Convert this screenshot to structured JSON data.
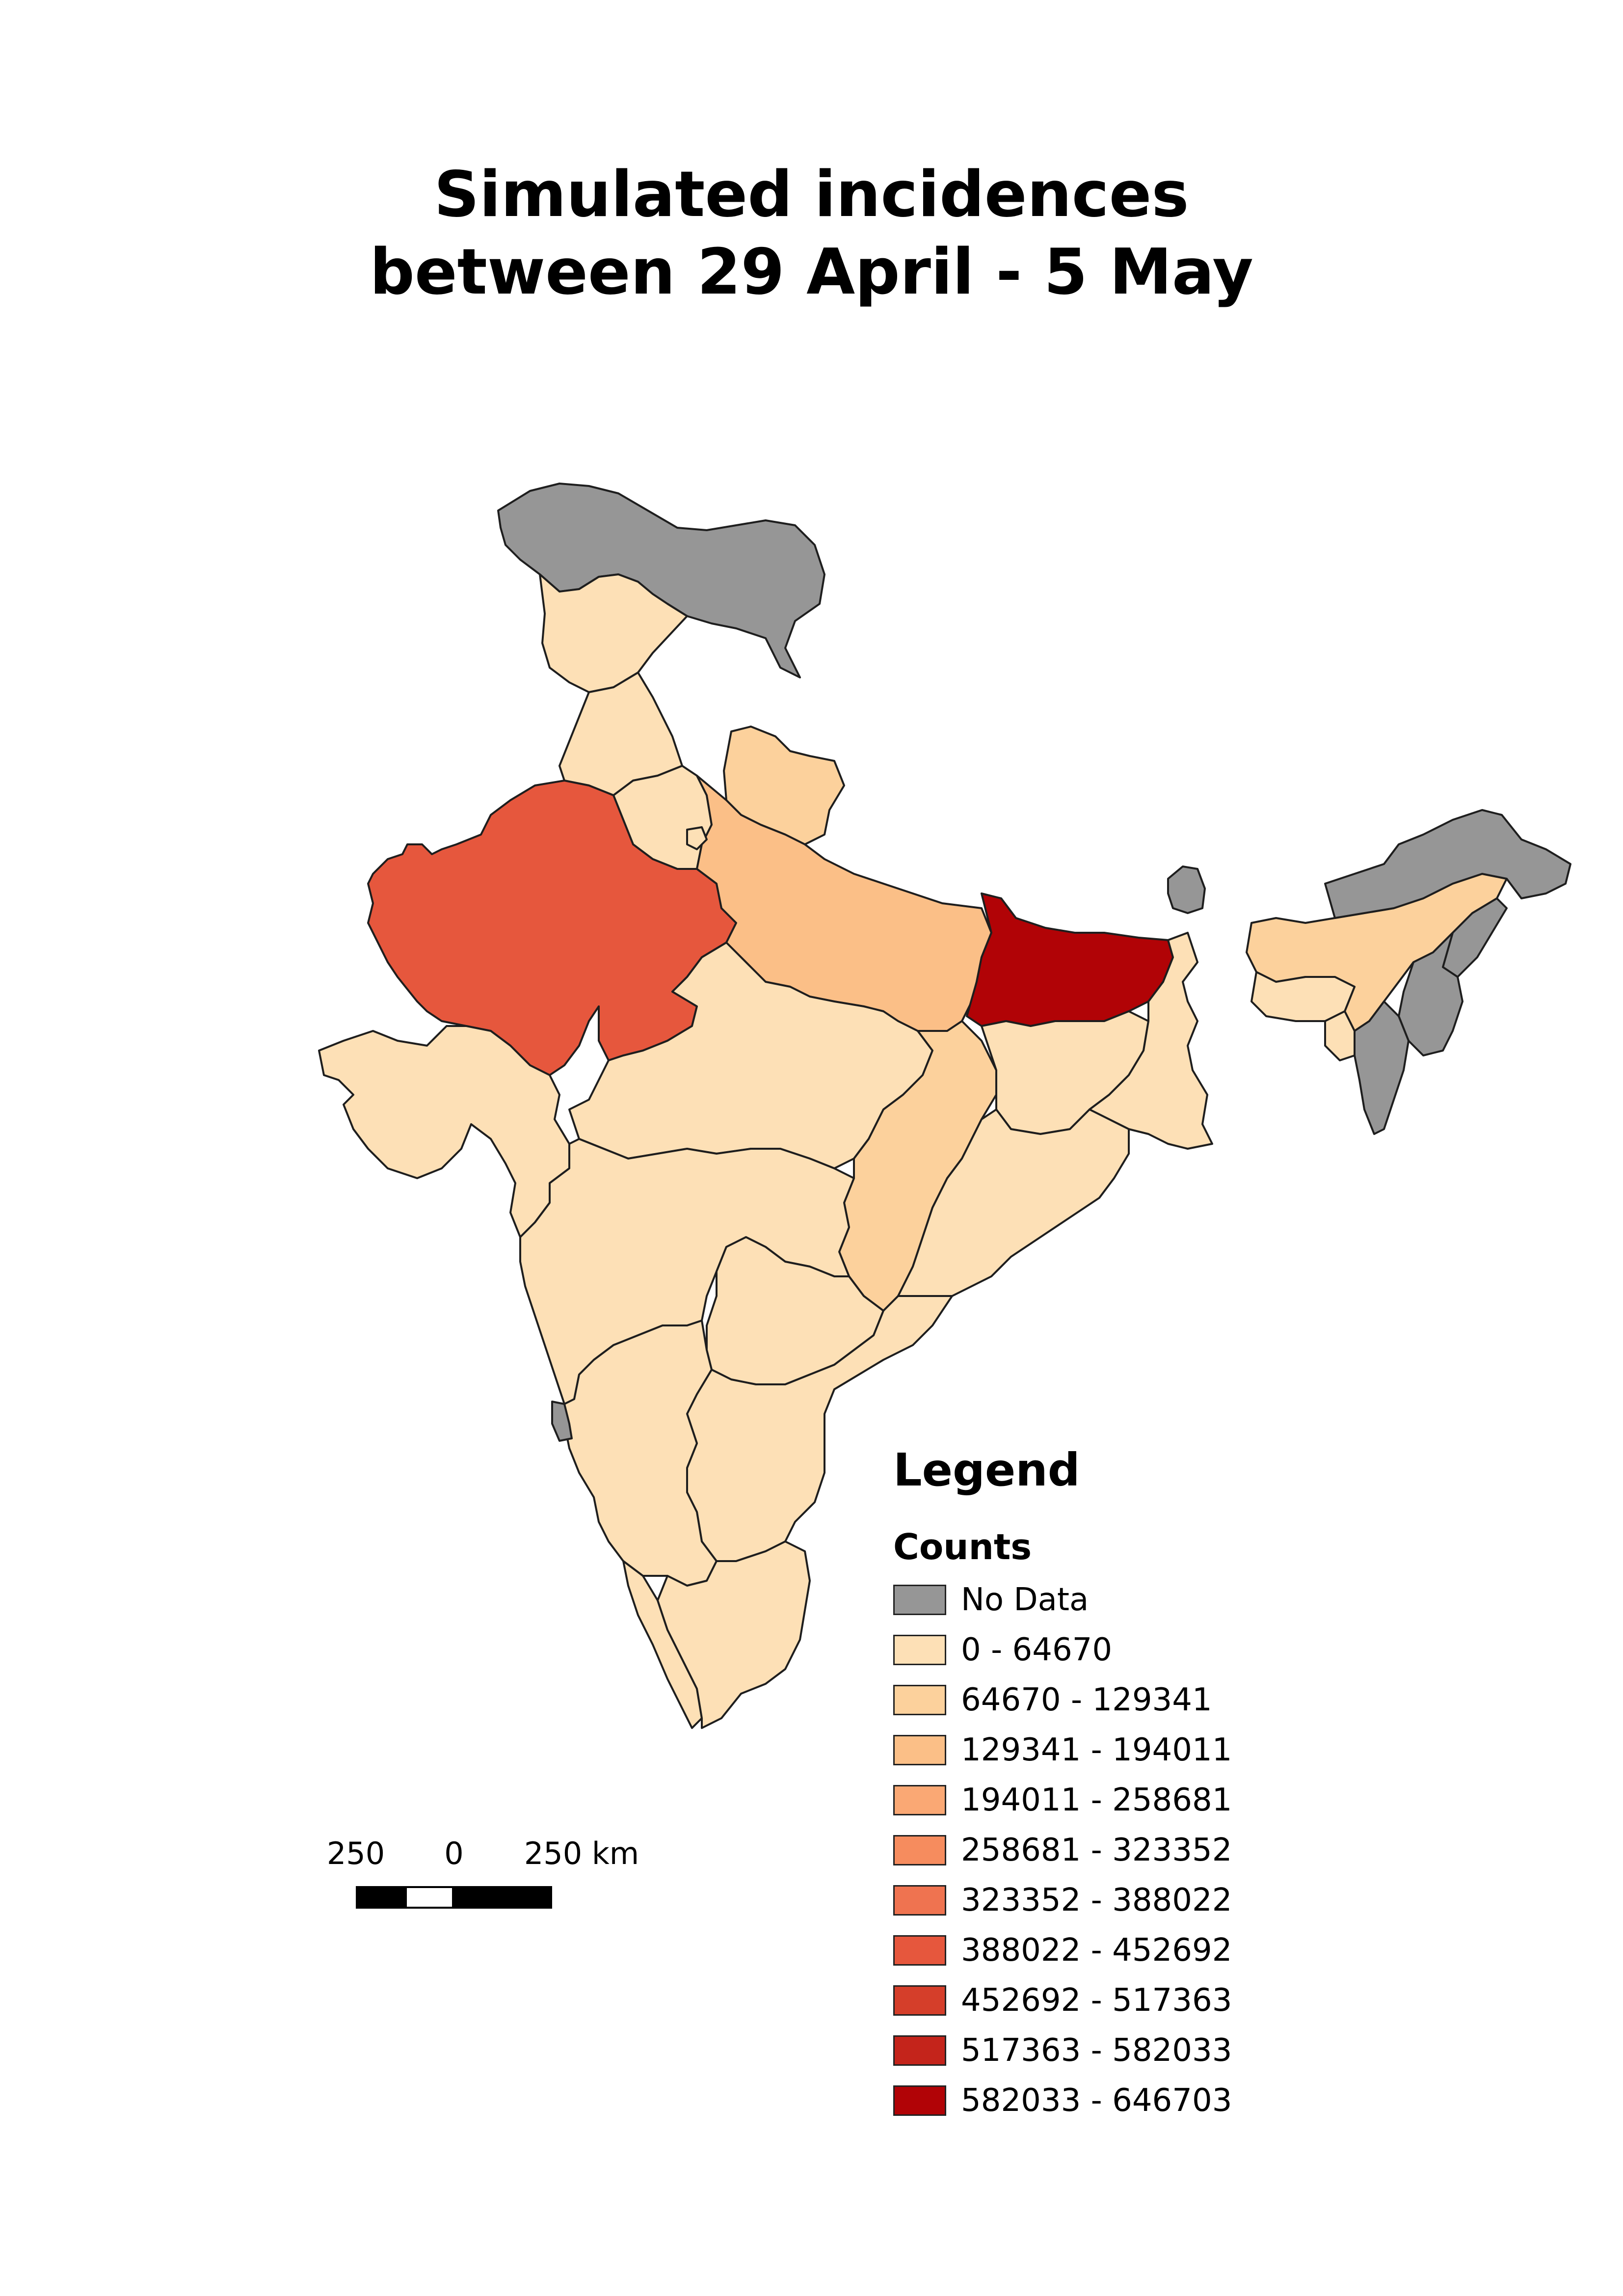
{
  "title": {
    "line1": "Simulated incidences",
    "line2": "between 29 April - 5 May"
  },
  "legend": {
    "title": "Legend",
    "subtitle": "Counts",
    "items": [
      {
        "label": "No Data",
        "color": "#969696"
      },
      {
        "label": "0 - 64670",
        "color": "#fde0b6"
      },
      {
        "label": "64670 - 129341",
        "color": "#fcd19c"
      },
      {
        "label": "129341 - 194011",
        "color": "#fbbf87"
      },
      {
        "label": "194011 - 258681",
        "color": "#faa874"
      },
      {
        "label": "258681 - 323352",
        "color": "#f68c5e"
      },
      {
        "label": "323352 - 388022",
        "color": "#ef7350"
      },
      {
        "label": "388022 - 452692",
        "color": "#e6573d"
      },
      {
        "label": "452692 - 517363",
        "color": "#d53e2a"
      },
      {
        "label": "517363 - 582033",
        "color": "#c4241b"
      },
      {
        "label": "582033 - 646703",
        "color": "#b10306"
      }
    ]
  },
  "scale_bar": {
    "labels": [
      "250",
      "0",
      "250 km"
    ]
  },
  "regions": [
    {
      "name": "Jammu and Kashmir",
      "class": "No Data"
    },
    {
      "name": "Himachal Pradesh",
      "class": "0 - 64670"
    },
    {
      "name": "Punjab",
      "class": "0 - 64670"
    },
    {
      "name": "Haryana",
      "class": "0 - 64670"
    },
    {
      "name": "Uttarakhand",
      "class": "64670 - 129341"
    },
    {
      "name": "Uttar Pradesh",
      "class": "129341 - 194011"
    },
    {
      "name": "Rajasthan",
      "class": "388022 - 452692"
    },
    {
      "name": "Gujarat",
      "class": "0 - 64670"
    },
    {
      "name": "Madhya Pradesh",
      "class": "0 - 64670"
    },
    {
      "name": "Chhattisgarh",
      "class": "64670 - 129341"
    },
    {
      "name": "Bihar",
      "class": "582033 - 646703"
    },
    {
      "name": "Jharkhand",
      "class": "0 - 64670"
    },
    {
      "name": "West Bengal",
      "class": "0 - 64670"
    },
    {
      "name": "Odisha",
      "class": "0 - 64670"
    },
    {
      "name": "Maharashtra",
      "class": "0 - 64670"
    },
    {
      "name": "Telangana",
      "class": "0 - 64670"
    },
    {
      "name": "Andhra Pradesh",
      "class": "0 - 64670"
    },
    {
      "name": "Karnataka",
      "class": "0 - 64670"
    },
    {
      "name": "Goa",
      "class": "No Data"
    },
    {
      "name": "Kerala",
      "class": "0 - 64670"
    },
    {
      "name": "Tamil Nadu",
      "class": "0 - 64670"
    },
    {
      "name": "Sikkim",
      "class": "No Data"
    },
    {
      "name": "Assam",
      "class": "64670 - 129341"
    },
    {
      "name": "Meghalaya",
      "class": "0 - 64670"
    },
    {
      "name": "Arunachal Pradesh",
      "class": "No Data"
    },
    {
      "name": "Nagaland",
      "class": "No Data"
    },
    {
      "name": "Manipur",
      "class": "No Data"
    },
    {
      "name": "Mizoram",
      "class": "No Data"
    },
    {
      "name": "Tripura",
      "class": "0 - 64670"
    },
    {
      "name": "Delhi",
      "class": "0 - 64670"
    }
  ]
}
